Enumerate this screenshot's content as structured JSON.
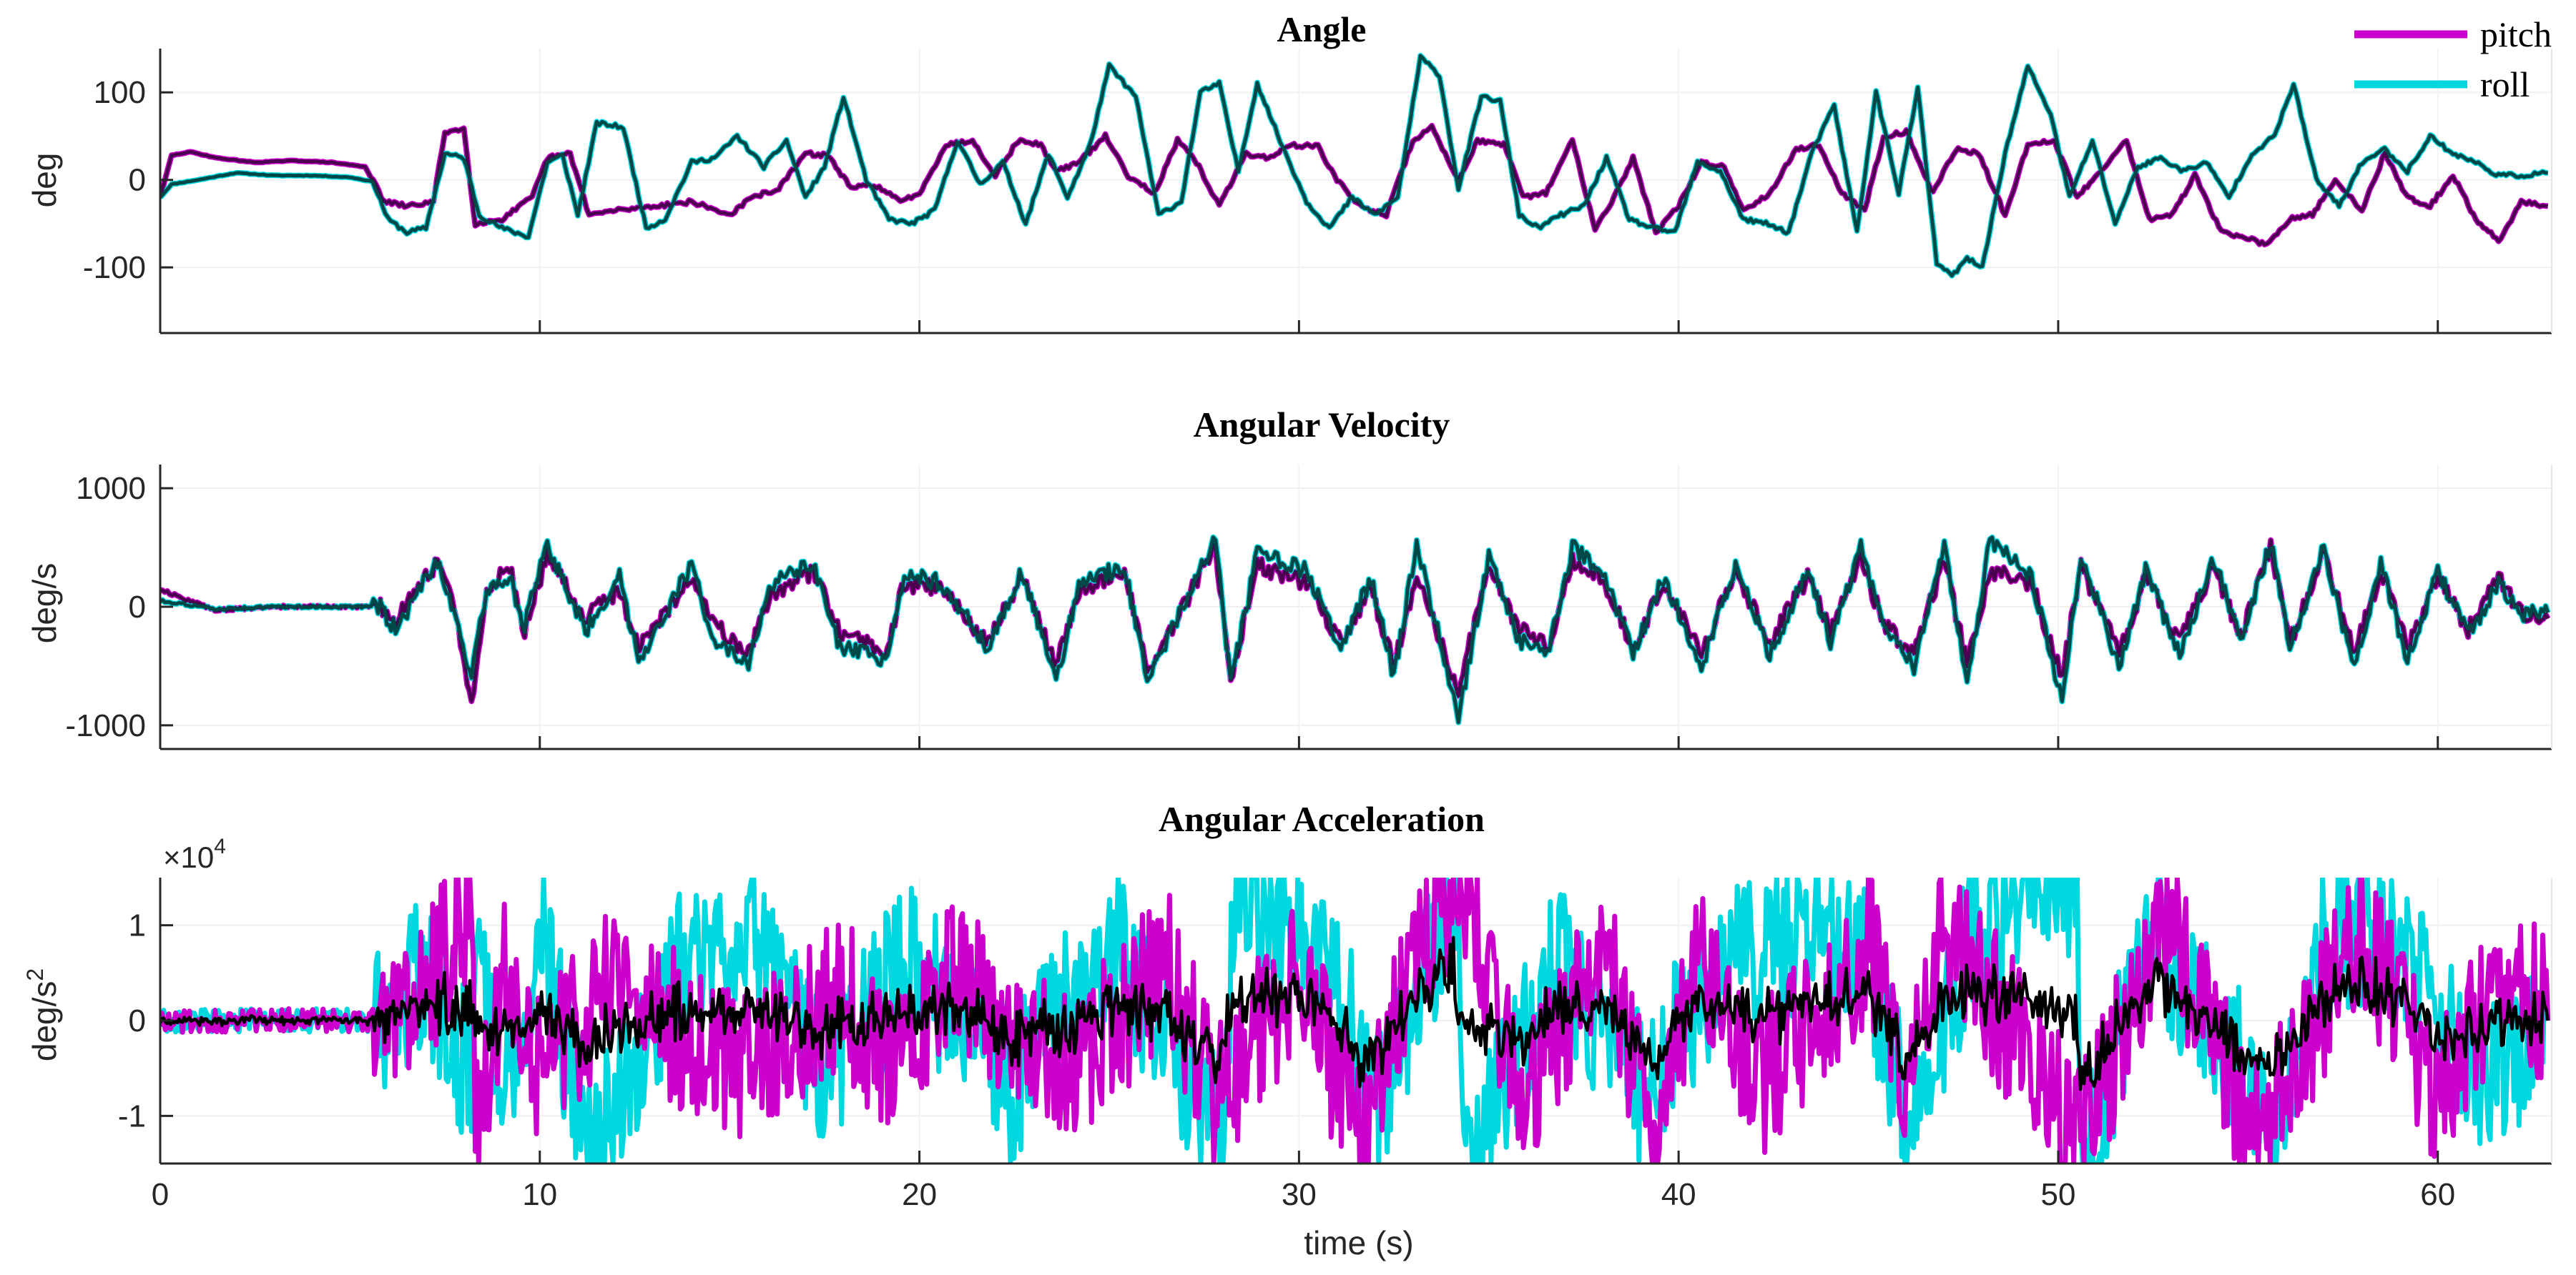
{
  "figure": {
    "xlabel": "time (s)",
    "x_ticks": [
      0,
      10,
      20,
      30,
      40,
      50,
      60
    ],
    "x_range": [
      0,
      63
    ],
    "legend": {
      "placement": "top-right",
      "entries": [
        {
          "label": "pitch",
          "color": "#cc00cc"
        },
        {
          "label": "roll",
          "color": "#00d8e0"
        }
      ]
    },
    "colors": {
      "pitch_raw": "#cc00cc",
      "roll_raw": "#00d8e0",
      "pitch_filtered": "#4b0050",
      "roll_filtered": "#004848",
      "combined_filtered": "#000000"
    }
  },
  "chart_data": [
    {
      "type": "line",
      "title": "Angle",
      "xlabel": "",
      "ylabel": "deg",
      "ylim": [
        -175,
        150
      ],
      "yticks": [
        100,
        0,
        -100
      ],
      "ytick_labels": [
        "100",
        "0",
        "-100"
      ],
      "series": [
        {
          "name": "pitch",
          "x": [
            0,
            0.3,
            0.8,
            1.5,
            2.5,
            3.5,
            4.5,
            5.4,
            5.9,
            6.5,
            7.2,
            7.5,
            8.0,
            8.3,
            9.0,
            9.8,
            10.2,
            10.8,
            11.3,
            12.0,
            13.0,
            14.0,
            15.0,
            15.6,
            16.3,
            17.0,
            17.6,
            18.2,
            18.8,
            19.5,
            20.0,
            20.7,
            21.4,
            22.0,
            22.6,
            23.2,
            23.6,
            24.2,
            24.9,
            25.5,
            26.2,
            26.8,
            27.3,
            27.9,
            28.6,
            29.2,
            29.8,
            30.5,
            31.0,
            31.6,
            32.3,
            33.0,
            33.5,
            34.2,
            34.7,
            35.4,
            35.9,
            36.5,
            37.2,
            37.8,
            38.3,
            38.8,
            39.4,
            40.0,
            40.6,
            41.2,
            41.7,
            42.4,
            43.1,
            43.7,
            44.3,
            44.9,
            45.4,
            46.0,
            46.7,
            47.3,
            47.9,
            48.6,
            49.2,
            49.9,
            50.5,
            51.1,
            51.8,
            52.4,
            53.0,
            53.6,
            54.3,
            54.9,
            55.5,
            56.1,
            56.7,
            57.3,
            58.0,
            58.6,
            59.2,
            59.8,
            60.4,
            61.0,
            61.6,
            62.2,
            62.9
          ],
          "values": [
            -20,
            28,
            32,
            25,
            20,
            22,
            20,
            15,
            -25,
            -30,
            -25,
            55,
            58,
            -50,
            -45,
            -20,
            25,
            30,
            -40,
            -35,
            -30,
            -25,
            -40,
            -20,
            -10,
            30,
            28,
            -10,
            -5,
            -25,
            -15,
            40,
            45,
            5,
            45,
            40,
            10,
            20,
            50,
            5,
            -15,
            45,
            20,
            -30,
            30,
            25,
            40,
            38,
            0,
            -30,
            -40,
            45,
            60,
            0,
            45,
            40,
            -20,
            -15,
            45,
            -55,
            -20,
            25,
            -60,
            -30,
            20,
            15,
            -35,
            -15,
            35,
            40,
            -15,
            -35,
            50,
            55,
            -15,
            35,
            30,
            -40,
            40,
            45,
            -20,
            10,
            45,
            -45,
            -40,
            5,
            -60,
            -65,
            -75,
            -45,
            -40,
            0,
            -35,
            30,
            -20,
            -30,
            5,
            -45,
            -70,
            -25,
            -30
          ]
        },
        {
          "name": "roll",
          "x": [
            0,
            0.3,
            1.0,
            2.0,
            3.0,
            4.0,
            5.0,
            5.6,
            6.0,
            6.5,
            7.0,
            7.5,
            8.0,
            8.4,
            9.0,
            9.7,
            10.2,
            10.6,
            11.0,
            11.5,
            12.2,
            12.8,
            13.3,
            14.0,
            14.6,
            15.2,
            15.9,
            16.5,
            17.0,
            17.5,
            18.0,
            18.6,
            19.2,
            19.8,
            20.4,
            21.0,
            21.6,
            22.2,
            22.8,
            23.4,
            23.9,
            24.5,
            25.0,
            25.7,
            26.3,
            26.9,
            27.4,
            27.9,
            28.4,
            28.9,
            29.5,
            30.2,
            30.8,
            31.4,
            32.0,
            32.6,
            33.2,
            33.7,
            34.2,
            34.8,
            35.3,
            35.8,
            36.3,
            36.9,
            37.5,
            38.1,
            38.7,
            39.3,
            39.9,
            40.5,
            41.1,
            41.7,
            42.3,
            42.9,
            43.5,
            44.1,
            44.7,
            45.2,
            45.8,
            46.3,
            46.8,
            47.2,
            47.6,
            48.0,
            48.6,
            49.2,
            49.8,
            50.3,
            50.9,
            51.5,
            52.1,
            52.7,
            53.3,
            53.9,
            54.5,
            55.1,
            55.7,
            56.2,
            56.8,
            57.4,
            58.0,
            58.6,
            59.2,
            59.8,
            60.4,
            61.0,
            61.6,
            62.2,
            62.9
          ],
          "values": [
            -20,
            -5,
            0,
            8,
            5,
            5,
            3,
            -2,
            -45,
            -60,
            -55,
            30,
            25,
            -40,
            -55,
            -65,
            20,
            28,
            -40,
            65,
            60,
            -55,
            -45,
            20,
            25,
            50,
            15,
            45,
            -20,
            15,
            95,
            0,
            -45,
            -50,
            -35,
            45,
            -5,
            20,
            -50,
            30,
            -20,
            40,
            130,
            95,
            -40,
            -25,
            100,
            110,
            10,
            110,
            45,
            -25,
            -55,
            -20,
            -40,
            -20,
            140,
            120,
            -10,
            95,
            90,
            -40,
            -55,
            -40,
            -30,
            25,
            -45,
            -55,
            -60,
            20,
            10,
            -45,
            -50,
            -60,
            30,
            85,
            -60,
            100,
            -15,
            105,
            -95,
            -110,
            -90,
            -100,
            30,
            130,
            75,
            -20,
            45,
            -50,
            15,
            25,
            10,
            20,
            -20,
            30,
            50,
            110,
            0,
            -30,
            20,
            35,
            10,
            50,
            30,
            20,
            5,
            5,
            8
          ]
        }
      ]
    },
    {
      "type": "line",
      "title": "Angular Velocity",
      "xlabel": "",
      "ylabel": "deg/s",
      "ylim": [
        -1200,
        1200
      ],
      "yticks": [
        1000,
        0,
        -1000
      ],
      "ytick_labels": [
        "1000",
        "0",
        "-1000"
      ],
      "series": [
        {
          "name": "pitch",
          "x": [
            0,
            0.5,
            1.5,
            3,
            5,
            5.8,
            6.2,
            7.3,
            7.8,
            8.2,
            8.6,
            9.2,
            9.6,
            10.2,
            11.2,
            12.1,
            12.6,
            14.0,
            14.6,
            15.5,
            16.1,
            17.2,
            17.9,
            19.1,
            19.6,
            20.6,
            21.8,
            22.7,
            23.6,
            24.2,
            25.4,
            26.0,
            27.2,
            27.8,
            28.2,
            28.9,
            30.2,
            31.1,
            31.9,
            32.5,
            33.1,
            34.2,
            35.0,
            35.8,
            36.6,
            37.2,
            38.0,
            38.8,
            39.6,
            40.6,
            41.5,
            42.4,
            43.4,
            44.0,
            44.8,
            45.4,
            46.2,
            47.0,
            47.6,
            48.2,
            49.3,
            50.1,
            50.6,
            51.6,
            52.3,
            53.2,
            54.1,
            54.8,
            55.6,
            56.1,
            57.0,
            57.8,
            58.5,
            59.2,
            60.0,
            60.8,
            61.6,
            62.2,
            62.9
          ],
          "values": [
            150,
            80,
            -30,
            0,
            0,
            0,
            -120,
            380,
            -50,
            -850,
            100,
            360,
            -200,
            450,
            -100,
            150,
            -350,
            250,
            -150,
            -400,
            100,
            300,
            -200,
            -400,
            200,
            150,
            -300,
            250,
            -500,
            150,
            300,
            -550,
            150,
            500,
            -600,
            350,
            200,
            -300,
            150,
            -500,
            250,
            -700,
            350,
            -200,
            -300,
            400,
            250,
            -350,
            200,
            -400,
            300,
            -300,
            250,
            -200,
            400,
            -150,
            -400,
            400,
            -500,
            300,
            200,
            -600,
            350,
            -400,
            250,
            -300,
            350,
            -250,
            500,
            -300,
            450,
            -400,
            300,
            -350,
            250,
            -200,
            250,
            -50,
            -100
          ]
        },
        {
          "name": "roll",
          "x": [
            0,
            0.5,
            1.5,
            3,
            5,
            5.8,
            6.2,
            7.3,
            7.8,
            8.2,
            8.6,
            9.2,
            9.6,
            10.2,
            11.2,
            12.1,
            12.6,
            14.0,
            14.6,
            15.5,
            16.1,
            17.2,
            17.9,
            19.1,
            19.6,
            20.6,
            21.8,
            22.7,
            23.6,
            24.2,
            25.4,
            26.0,
            27.2,
            27.8,
            28.2,
            28.9,
            30.2,
            31.1,
            31.9,
            32.5,
            33.1,
            34.2,
            35.0,
            35.8,
            36.6,
            37.2,
            38.0,
            38.8,
            39.6,
            40.6,
            41.5,
            42.4,
            43.4,
            44.0,
            44.8,
            45.4,
            46.2,
            47.0,
            47.6,
            48.2,
            49.3,
            50.1,
            50.6,
            51.6,
            52.3,
            53.2,
            54.1,
            54.8,
            55.6,
            56.1,
            57.0,
            57.8,
            58.5,
            59.2,
            60.0,
            60.8,
            61.6,
            62.2,
            62.9
          ],
          "values": [
            50,
            30,
            -20,
            0,
            0,
            0,
            -200,
            400,
            -100,
            -600,
            150,
            250,
            -150,
            520,
            -200,
            250,
            -450,
            350,
            -300,
            -500,
            200,
            350,
            -350,
            -450,
            280,
            200,
            -350,
            300,
            -650,
            200,
            350,
            -650,
            200,
            580,
            -650,
            450,
            300,
            -350,
            250,
            -600,
            550,
            -950,
            450,
            -300,
            -350,
            500,
            300,
            -400,
            250,
            -500,
            350,
            -400,
            300,
            -300,
            500,
            -200,
            -500,
            500,
            -650,
            550,
            250,
            -800,
            450,
            -500,
            300,
            -400,
            400,
            -300,
            550,
            -350,
            500,
            -550,
            350,
            -450,
            300,
            -250,
            200,
            -50,
            -50
          ]
        }
      ]
    },
    {
      "type": "line",
      "title": "Angular Acceleration",
      "xlabel": "time (s)",
      "ylabel": "deg/s^2",
      "y_multiplier_label": "×10",
      "y_multiplier_exponent": "4",
      "ylim": [
        -1.5,
        1.5
      ],
      "yticks": [
        1,
        0,
        -1
      ],
      "ytick_labels": [
        "1",
        "0",
        "-1"
      ],
      "series": [
        {
          "name": "pitch",
          "x": [
            0,
            5.6,
            7.0,
            8.2,
            8.3,
            9.2,
            10.0,
            12.0,
            15.0,
            18.0,
            19.3,
            21.0,
            24.0,
            26.5,
            27.8,
            30.0,
            31.6,
            33.0,
            34.2,
            36.0,
            38.0,
            39.4,
            40.5,
            42.0,
            45.0,
            46.0,
            47.0,
            50.5,
            53.0,
            55.0,
            58.0,
            60.0,
            62.0,
            62.9
          ],
          "values": [
            0.0,
            0.0,
            0.25,
            1.35,
            -1.3,
            0.7,
            -0.5,
            0.4,
            -0.5,
            0.3,
            -0.6,
            0.5,
            -0.6,
            0.6,
            -0.8,
            0.5,
            -1.3,
            0.7,
            1.45,
            -0.9,
            0.7,
            -1.2,
            0.6,
            -0.7,
            0.8,
            -0.8,
            0.95,
            -1.2,
            1.0,
            -1.25,
            0.9,
            -0.8,
            0.6,
            0.0
          ]
        },
        {
          "name": "roll",
          "x": [
            0,
            5.6,
            7.0,
            8.2,
            8.4,
            9.0,
            10.1,
            11.3,
            13.9,
            15.5,
            17.5,
            19.7,
            22.4,
            25.1,
            28.0,
            28.3,
            30.6,
            32.1,
            34.2,
            34.3,
            36.8,
            39.0,
            41.5,
            44.8,
            46.1,
            47.7,
            50.5,
            50.6,
            52.5,
            55.7,
            57.1,
            59.1,
            61.2,
            62.9
          ],
          "values": [
            0.0,
            0.0,
            0.5,
            -0.6,
            0.9,
            -0.6,
            0.8,
            -1.5,
            0.7,
            1.0,
            -0.6,
            0.65,
            -0.7,
            0.8,
            -1.3,
            1.5,
            0.7,
            -0.8,
            1.5,
            -1.5,
            0.6,
            -0.7,
            0.8,
            0.9,
            -1.2,
            0.9,
            1.5,
            -1.5,
            0.9,
            -1.0,
            1.0,
            0.8,
            -0.7,
            0.0
          ]
        }
      ]
    }
  ]
}
